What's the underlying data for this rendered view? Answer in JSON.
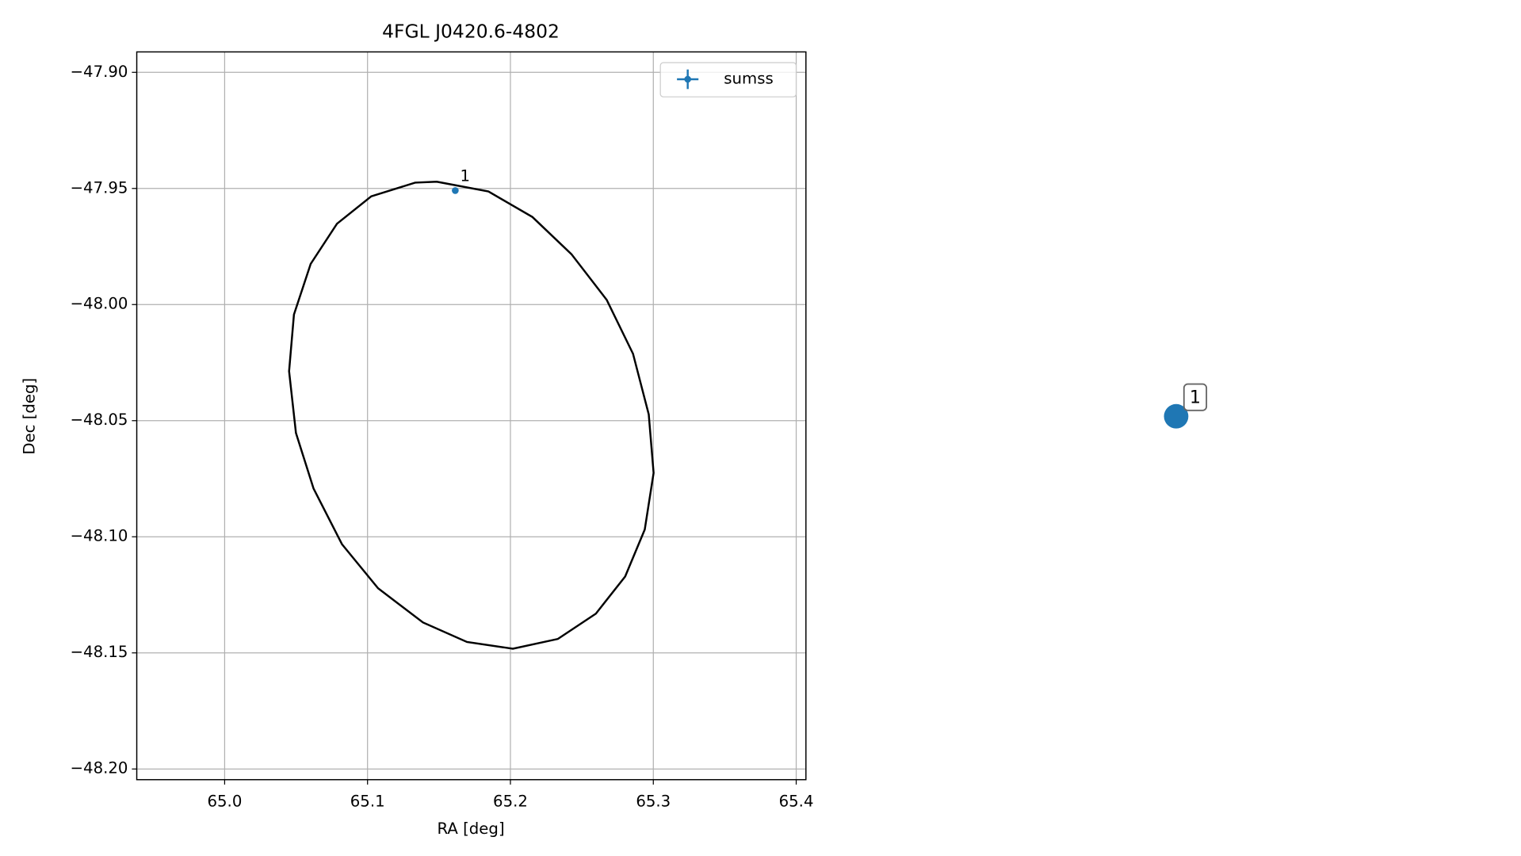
{
  "chart_data": [
    {
      "type": "scatter",
      "title": "4FGL J0420.6-4802",
      "xlabel": "RA [deg]",
      "ylabel": "Dec [deg]",
      "xlim": [
        64.9385,
        65.4068
      ],
      "ylim": [
        -48.2046,
        -47.8912
      ],
      "xticks": [
        {
          "value": 65.0,
          "label": "65.0"
        },
        65.1,
        65.2,
        65.3,
        65.4
      ],
      "yticks": [
        {
          "value": -47.9,
          "label": "−47.90"
        },
        {
          "value": -47.95,
          "label": "−47.95"
        },
        {
          "value": -48.0,
          "label": "−48.00"
        },
        {
          "value": -48.05,
          "label": "−48.05"
        },
        {
          "value": -48.1,
          "label": "−48.10"
        },
        {
          "value": -48.15,
          "label": "−48.15"
        },
        {
          "value": -48.2,
          "label": "−48.20"
        }
      ],
      "grid": true,
      "legend": "upper right",
      "series": [
        {
          "name": "sumss",
          "color": "#1f77b4",
          "x": [
            65.1614
          ],
          "y": [
            -47.9509
          ],
          "labels": [
            "1"
          ]
        }
      ],
      "ellipse": {
        "color": "#000000",
        "x": [
          65.1484,
          65.1846,
          65.2154,
          65.2427,
          65.2674,
          65.2858,
          65.2968,
          65.3002,
          65.294,
          65.2803,
          65.2598,
          65.2332,
          65.2017,
          65.1696,
          65.1388,
          65.1074,
          65.0821,
          65.0622,
          65.0499,
          65.0451,
          65.0485,
          65.0602,
          65.0786,
          65.1026,
          65.1333
        ],
        "y": [
          -47.9471,
          -47.9513,
          -47.9623,
          -47.9783,
          -47.998,
          -48.0212,
          -48.0473,
          -48.0725,
          -48.0969,
          -48.1171,
          -48.1331,
          -48.144,
          -48.1482,
          -48.1453,
          -48.1369,
          -48.1222,
          -48.1032,
          -48.0792,
          -48.0553,
          -48.0287,
          -48.0043,
          -47.9825,
          -47.9652,
          -47.9534,
          -47.9475
        ]
      }
    },
    {
      "type": "graph",
      "nodes": [
        {
          "label": "1",
          "color": "#1f77b4"
        }
      ]
    }
  ]
}
